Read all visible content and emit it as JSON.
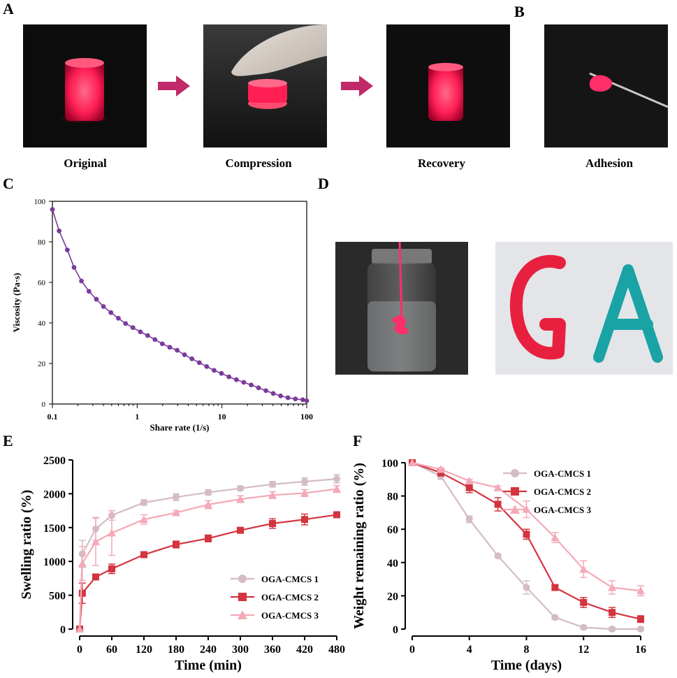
{
  "panels": {
    "A": "A",
    "B": "B",
    "C": "C",
    "D": "D",
    "E": "E",
    "F": "F"
  },
  "photos": {
    "original": "Original",
    "compression": "Compression",
    "recovery": "Recovery",
    "adhesion": "Adhesion",
    "letter_g": "G",
    "letter_a": "A"
  },
  "colors": {
    "gel_red": "#ff1f55",
    "purple": "#7b3a9e",
    "series1": "#d4bcc6",
    "series2": "#d3343f",
    "series3": "#f4a9b7",
    "arrow": "#c02a6a",
    "teal": "#1aa3a5"
  },
  "chart_data": [
    {
      "id": "C",
      "type": "line",
      "xscale": "log",
      "xlabel": "Share rate (1/s)",
      "ylabel": "Viscosity (Pa·s)",
      "xlim": [
        0.1,
        100
      ],
      "ylim": [
        0,
        100
      ],
      "xticks": [
        "0.1",
        "1",
        "10",
        "100"
      ],
      "yticks": [
        "0",
        "20",
        "40",
        "60",
        "80",
        "100"
      ],
      "series": [
        {
          "name": "viscosity",
          "x": [
            0.1,
            0.12,
            0.15,
            0.18,
            0.22,
            0.27,
            0.33,
            0.4,
            0.49,
            0.6,
            0.73,
            0.89,
            1.09,
            1.33,
            1.62,
            1.98,
            2.42,
            2.96,
            3.62,
            4.42,
            5.41,
            6.61,
            8.08,
            9.87,
            12.1,
            14.8,
            18.1,
            22.1,
            27,
            33,
            40.3,
            49.2,
            60.1,
            73.5,
            89.8,
            100
          ],
          "y": [
            96,
            85.4,
            76,
            67.4,
            60.7,
            55.6,
            51.7,
            48.1,
            45.1,
            42.3,
            39.7,
            37.7,
            35.6,
            33.8,
            31.8,
            29.7,
            28,
            26.5,
            24.3,
            22.3,
            20.4,
            18.5,
            16.6,
            15.1,
            13.4,
            12,
            10.7,
            9.4,
            8,
            6.6,
            5.2,
            4,
            3.1,
            2.5,
            2.1,
            1.6
          ]
        }
      ]
    },
    {
      "id": "E",
      "type": "line",
      "xlabel": "Time (min)",
      "ylabel": "Swelling ratio (%)",
      "xlim": [
        0,
        480
      ],
      "ylim": [
        0,
        2500
      ],
      "xticks": [
        "0",
        "60",
        "120",
        "180",
        "240",
        "300",
        "360",
        "420",
        "480"
      ],
      "yticks": [
        "0",
        "500",
        "1000",
        "1500",
        "2000",
        "2500"
      ],
      "legend_position": "bottom-right",
      "series": [
        {
          "name": "OGA-CMCS 1",
          "marker": "circle",
          "x": [
            0,
            5,
            30,
            60,
            120,
            180,
            240,
            300,
            360,
            420,
            480
          ],
          "y": [
            0,
            1110,
            1480,
            1680,
            1870,
            1950,
            2020,
            2080,
            2140,
            2180,
            2220
          ],
          "err": [
            0,
            200,
            170,
            70,
            40,
            50,
            35,
            30,
            40,
            55,
            60
          ]
        },
        {
          "name": "OGA-CMCS 2",
          "marker": "square",
          "x": [
            0,
            5,
            30,
            60,
            120,
            180,
            240,
            300,
            360,
            420,
            480
          ],
          "y": [
            0,
            530,
            770,
            890,
            1100,
            1250,
            1340,
            1460,
            1560,
            1620,
            1690
          ],
          "err": [
            0,
            150,
            40,
            70,
            30,
            50,
            50,
            30,
            70,
            80,
            40
          ]
        },
        {
          "name": "OGA-CMCS 3",
          "marker": "triangle",
          "x": [
            0,
            5,
            30,
            60,
            120,
            180,
            240,
            300,
            360,
            420,
            480
          ],
          "y": [
            0,
            970,
            1290,
            1420,
            1620,
            1720,
            1840,
            1920,
            1980,
            2010,
            2070
          ],
          "err": [
            0,
            250,
            350,
            330,
            70,
            30,
            60,
            50,
            50,
            50,
            50
          ]
        }
      ]
    },
    {
      "id": "F",
      "type": "line",
      "xlabel": "Time (days)",
      "ylabel": "Weight remaining ratio (%)",
      "xlim": [
        0,
        16
      ],
      "ylim": [
        0,
        100
      ],
      "xticks": [
        "0",
        "4",
        "8",
        "12",
        "16"
      ],
      "yticks": [
        "0",
        "20",
        "40",
        "60",
        "80",
        "100"
      ],
      "legend_position": "top-right",
      "series": [
        {
          "name": "OGA-CMCS 1",
          "marker": "circle",
          "x": [
            0,
            2,
            4,
            6,
            8,
            10,
            12,
            14,
            16
          ],
          "y": [
            100,
            92,
            66,
            44,
            25,
            7,
            1,
            0,
            0
          ],
          "err": [
            0,
            2,
            2,
            1,
            4,
            1,
            1,
            1,
            1
          ]
        },
        {
          "name": "OGA-CMCS 2",
          "marker": "square",
          "x": [
            0,
            2,
            4,
            6,
            8,
            10,
            12,
            14,
            16
          ],
          "y": [
            100,
            94,
            85,
            75,
            57,
            25,
            16,
            10,
            6
          ],
          "err": [
            0,
            2,
            3,
            4,
            3,
            1,
            3,
            3,
            2
          ]
        },
        {
          "name": "OGA-CMCS 3",
          "marker": "triangle",
          "x": [
            0,
            2,
            4,
            6,
            8,
            10,
            12,
            14,
            16
          ],
          "y": [
            100,
            96,
            89,
            85,
            72,
            55,
            36,
            25,
            23
          ],
          "err": [
            0,
            1,
            1,
            1,
            5,
            3,
            5,
            4,
            3
          ]
        }
      ]
    }
  ]
}
